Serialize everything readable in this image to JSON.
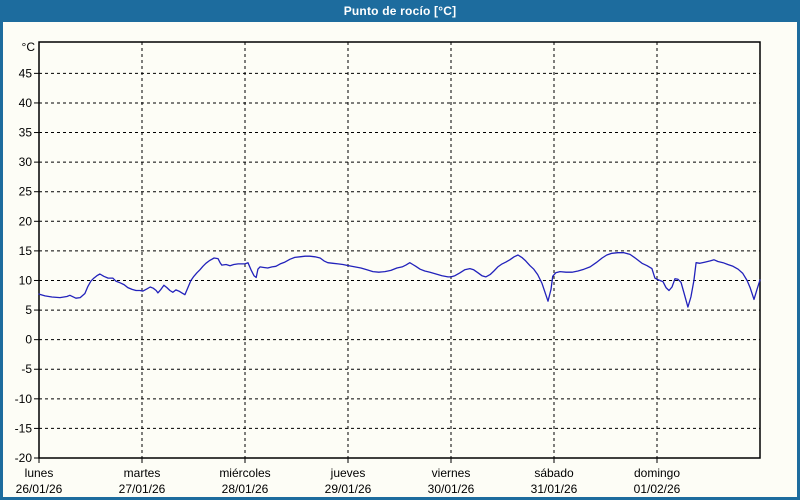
{
  "window": {
    "title": "Punto de rocío [°C]"
  },
  "colors": {
    "frame": "#1d6c9e",
    "title_text": "#ffffff",
    "content_bg": "#fdfdf6",
    "plot_border": "#000000",
    "grid": "#000000",
    "tick_text": "#000000",
    "line": "#2222bb"
  },
  "chart_data": {
    "type": "line",
    "title": "Punto de rocío [°C]",
    "y_unit": "°C",
    "ylim": [
      -20,
      50.3
    ],
    "yticks": [
      45,
      40,
      35,
      30,
      25,
      20,
      15,
      10,
      5,
      0,
      -5,
      -10,
      -15,
      -20
    ],
    "grid": "dashed",
    "legend": "none",
    "x_span_hours": 168,
    "x_days": [
      {
        "name": "lunes",
        "date": "26/01/26"
      },
      {
        "name": "martes",
        "date": "27/01/26"
      },
      {
        "name": "miércoles",
        "date": "28/01/26"
      },
      {
        "name": "jueves",
        "date": "29/01/26"
      },
      {
        "name": "viernes",
        "date": "30/01/26"
      },
      {
        "name": "sábado",
        "date": "31/01/26"
      },
      {
        "name": "domingo",
        "date": "01/02/26"
      }
    ],
    "series": [
      {
        "name": "Punto de rocío",
        "color": "#2222bb",
        "points_hours_value": [
          [
            0,
            7.7
          ],
          [
            1.4,
            7.4
          ],
          [
            3,
            7.2
          ],
          [
            4.9,
            7.1
          ],
          [
            6.5,
            7.3
          ],
          [
            7.2,
            7.5
          ],
          [
            8.6,
            7.0
          ],
          [
            9.6,
            7.1
          ],
          [
            10.7,
            7.8
          ],
          [
            11.4,
            9.0
          ],
          [
            12.1,
            9.9
          ],
          [
            12.8,
            10.4
          ],
          [
            13.5,
            10.8
          ],
          [
            14.2,
            11.1
          ],
          [
            15.1,
            10.7
          ],
          [
            16.1,
            10.4
          ],
          [
            17.2,
            10.4
          ],
          [
            17.9,
            9.9
          ],
          [
            18.9,
            9.6
          ],
          [
            19.8,
            9.3
          ],
          [
            20.7,
            8.8
          ],
          [
            21.7,
            8.5
          ],
          [
            22.6,
            8.3
          ],
          [
            23.5,
            8.3
          ],
          [
            24.2,
            8.2
          ],
          [
            25.2,
            8.6
          ],
          [
            25.9,
            8.9
          ],
          [
            26.6,
            8.7
          ],
          [
            27.3,
            8.3
          ],
          [
            27.7,
            7.9
          ],
          [
            28.4,
            8.5
          ],
          [
            29.1,
            9.2
          ],
          [
            29.8,
            8.8
          ],
          [
            30.5,
            8.3
          ],
          [
            31.2,
            8.0
          ],
          [
            31.9,
            8.4
          ],
          [
            32.6,
            8.2
          ],
          [
            33.3,
            7.9
          ],
          [
            34,
            7.6
          ],
          [
            34.7,
            8.8
          ],
          [
            35.4,
            10.0
          ],
          [
            36.1,
            10.7
          ],
          [
            36.8,
            11.3
          ],
          [
            37.5,
            11.8
          ],
          [
            38.2,
            12.4
          ],
          [
            38.9,
            12.9
          ],
          [
            39.8,
            13.4
          ],
          [
            40.8,
            13.8
          ],
          [
            41.7,
            13.7
          ],
          [
            42.2,
            13.0
          ],
          [
            42.6,
            12.6
          ],
          [
            43.6,
            12.7
          ],
          [
            44.5,
            12.5
          ],
          [
            45.4,
            12.7
          ],
          [
            46.4,
            12.8
          ],
          [
            47.3,
            12.8
          ],
          [
            48,
            12.8
          ],
          [
            48.7,
            13.0
          ],
          [
            49.4,
            11.8
          ],
          [
            50.1,
            10.8
          ],
          [
            50.6,
            10.5
          ],
          [
            51,
            11.9
          ],
          [
            51.5,
            12.3
          ],
          [
            52.4,
            12.2
          ],
          [
            53.3,
            12.1
          ],
          [
            54.3,
            12.3
          ],
          [
            55.2,
            12.4
          ],
          [
            56.2,
            12.8
          ],
          [
            57.3,
            13.1
          ],
          [
            58.5,
            13.6
          ],
          [
            59.6,
            13.9
          ],
          [
            60.8,
            14.0
          ],
          [
            62,
            14.1
          ],
          [
            63.1,
            14.1
          ],
          [
            64.3,
            14.0
          ],
          [
            65.5,
            13.8
          ],
          [
            66.4,
            13.3
          ],
          [
            67.3,
            13.0
          ],
          [
            68.5,
            12.9
          ],
          [
            69.7,
            12.8
          ],
          [
            70.8,
            12.7
          ],
          [
            72.2,
            12.5
          ],
          [
            73.6,
            12.3
          ],
          [
            75,
            12.1
          ],
          [
            76.4,
            11.8
          ],
          [
            77.8,
            11.5
          ],
          [
            79.2,
            11.4
          ],
          [
            80.6,
            11.5
          ],
          [
            82,
            11.7
          ],
          [
            83.4,
            12.1
          ],
          [
            84.6,
            12.3
          ],
          [
            85.5,
            12.6
          ],
          [
            86.4,
            13.0
          ],
          [
            87.1,
            12.7
          ],
          [
            87.8,
            12.4
          ],
          [
            88.8,
            11.9
          ],
          [
            89.9,
            11.6
          ],
          [
            91.1,
            11.4
          ],
          [
            92.5,
            11.1
          ],
          [
            93.9,
            10.8
          ],
          [
            95.3,
            10.6
          ],
          [
            96,
            10.6
          ],
          [
            96.9,
            10.8
          ],
          [
            98.1,
            11.3
          ],
          [
            99.2,
            11.8
          ],
          [
            100.4,
            12.0
          ],
          [
            101.3,
            11.8
          ],
          [
            102.3,
            11.3
          ],
          [
            103.2,
            10.8
          ],
          [
            104.1,
            10.6
          ],
          [
            105.1,
            11.0
          ],
          [
            106,
            11.6
          ],
          [
            106.9,
            12.3
          ],
          [
            107.9,
            12.8
          ],
          [
            108.8,
            13.1
          ],
          [
            109.7,
            13.5
          ],
          [
            110.7,
            14.0
          ],
          [
            111.6,
            14.3
          ],
          [
            112.5,
            13.9
          ],
          [
            113.4,
            13.3
          ],
          [
            114.4,
            12.5
          ],
          [
            115.3,
            11.9
          ],
          [
            116.2,
            11.0
          ],
          [
            117.2,
            9.5
          ],
          [
            117.9,
            8.0
          ],
          [
            118.6,
            6.5
          ],
          [
            119.3,
            8.5
          ],
          [
            119.7,
            10.7
          ],
          [
            120.4,
            11.3
          ],
          [
            121.4,
            11.5
          ],
          [
            122.8,
            11.4
          ],
          [
            124.2,
            11.4
          ],
          [
            125.6,
            11.6
          ],
          [
            127,
            11.9
          ],
          [
            128.4,
            12.3
          ],
          [
            129.8,
            13.0
          ],
          [
            131.2,
            13.8
          ],
          [
            132.3,
            14.3
          ],
          [
            133.5,
            14.6
          ],
          [
            134.9,
            14.7
          ],
          [
            136.3,
            14.7
          ],
          [
            137.7,
            14.4
          ],
          [
            139.1,
            13.7
          ],
          [
            140.5,
            12.9
          ],
          [
            141.7,
            12.5
          ],
          [
            142.8,
            12.0
          ],
          [
            143.5,
            10.4
          ],
          [
            144,
            10.2
          ],
          [
            144.7,
            10.0
          ],
          [
            145.4,
            9.8
          ],
          [
            146.1,
            8.8
          ],
          [
            146.8,
            8.3
          ],
          [
            147.5,
            8.9
          ],
          [
            148.2,
            10.3
          ],
          [
            148.9,
            10.2
          ],
          [
            149.6,
            9.7
          ],
          [
            150.3,
            7.9
          ],
          [
            151.2,
            5.5
          ],
          [
            151.9,
            7.2
          ],
          [
            152.6,
            10.0
          ],
          [
            153.1,
            13.0
          ],
          [
            154,
            12.9
          ],
          [
            155.2,
            13.1
          ],
          [
            156.4,
            13.3
          ],
          [
            157.3,
            13.5
          ],
          [
            158.2,
            13.2
          ],
          [
            159.4,
            13.0
          ],
          [
            160.5,
            12.7
          ],
          [
            161.7,
            12.4
          ],
          [
            162.9,
            11.9
          ],
          [
            164,
            11.2
          ],
          [
            165,
            10.0
          ],
          [
            165.7,
            8.8
          ],
          [
            166.6,
            6.8
          ],
          [
            167.3,
            8.5
          ],
          [
            168,
            10.1
          ]
        ]
      }
    ]
  }
}
